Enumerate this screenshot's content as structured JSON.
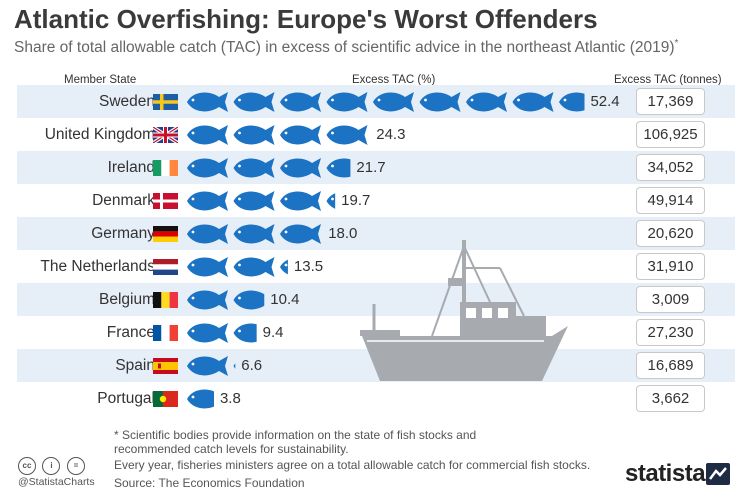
{
  "header": {
    "title": "Atlantic Overfishing: Europe's Worst Offenders",
    "subtitle": "Share of total allowable catch (TAC) in excess of scientific advice in the northeast Atlantic (2019)",
    "subtitle_mark": "*"
  },
  "columns": {
    "member_state": "Member State",
    "excess_pct": "Excess TAC (%)",
    "excess_tonnes": "Excess TAC (tonnes)"
  },
  "colors": {
    "fish": "#1c73c4",
    "row_shade": "#e6eef8",
    "boat": "#a7abb0"
  },
  "chart_data": {
    "type": "bar",
    "title": "Atlantic Overfishing: Europe's Worst Offenders",
    "subtitle": "Share of total allowable catch (TAC) in excess of scientific advice in the northeast Atlantic (2019)",
    "categories": [
      "Sweden",
      "United Kingdom",
      "Ireland",
      "Denmark",
      "Germany",
      "The Netherlands",
      "Belgium",
      "France",
      "Spain",
      "Portugal"
    ],
    "series": [
      {
        "name": "Excess TAC (%)",
        "values": [
          52.4,
          24.3,
          21.7,
          19.7,
          18.0,
          13.5,
          10.4,
          9.4,
          6.6,
          3.8
        ]
      },
      {
        "name": "Excess TAC (tonnes)",
        "values": [
          17369,
          106925,
          34052,
          49914,
          20620,
          31910,
          3009,
          27230,
          16689,
          3662
        ]
      }
    ],
    "rows": [
      {
        "country": "Sweden",
        "flag": "sweden-flag",
        "pct": 52.4,
        "pct_label": "52.4",
        "tonnes": "17,369"
      },
      {
        "country": "United Kingdom",
        "flag": "uk-flag",
        "pct": 24.3,
        "pct_label": "24.3",
        "tonnes": "106,925"
      },
      {
        "country": "Ireland",
        "flag": "ireland-flag",
        "pct": 21.7,
        "pct_label": "21.7",
        "tonnes": "34,052"
      },
      {
        "country": "Denmark",
        "flag": "denmark-flag",
        "pct": 19.7,
        "pct_label": "19.7",
        "tonnes": "49,914"
      },
      {
        "country": "Germany",
        "flag": "germany-flag",
        "pct": 18.0,
        "pct_label": "18.0",
        "tonnes": "20,620"
      },
      {
        "country": "The Netherlands",
        "flag": "netherlands-flag",
        "pct": 13.5,
        "pct_label": "13.5",
        "tonnes": "31,910"
      },
      {
        "country": "Belgium",
        "flag": "belgium-flag",
        "pct": 10.4,
        "pct_label": "10.4",
        "tonnes": "3,009"
      },
      {
        "country": "France",
        "flag": "france-flag",
        "pct": 9.4,
        "pct_label": "9.4",
        "tonnes": "27,230"
      },
      {
        "country": "Spain",
        "flag": "spain-flag",
        "pct": 6.6,
        "pct_label": "6.6",
        "tonnes": "16,689"
      },
      {
        "country": "Portugal",
        "flag": "portugal-flag",
        "pct": 3.8,
        "pct_label": "3.8",
        "tonnes": "3,662"
      }
    ]
  },
  "footer": {
    "note": "* Scientific bodies provide information on the state of fish stocks and recommended catch levels for sustainability.",
    "note2": "Every year, fisheries ministers agree on a total allowable catch for commercial fish stocks.",
    "source": "Source: The Economics Foundation",
    "handle": "@StatistaCharts",
    "logo": "statista",
    "license_icons": [
      "cc-icon",
      "by-icon",
      "nd-icon"
    ]
  }
}
